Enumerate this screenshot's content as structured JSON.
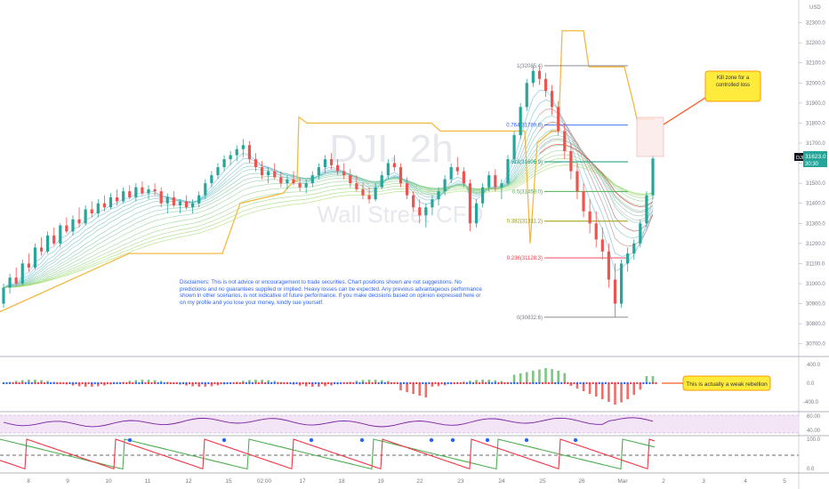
{
  "chart_data": {
    "type": "candlestick",
    "watermark": {
      "symbol": "DJI, 2h",
      "subtitle": "Wall Street CFD"
    },
    "currency": "USD",
    "price_axis": {
      "ticks": [
        30700,
        30800,
        30900,
        31000,
        31100,
        31200,
        31300,
        31400,
        31500,
        31600,
        31700,
        31800,
        31900,
        32000,
        32100,
        32200,
        32300
      ],
      "ylim": [
        30650,
        32360
      ]
    },
    "last_price": {
      "symbol": "DJI",
      "value": "31623.0",
      "countdown": "30:30"
    },
    "x_axis": {
      "labels": [
        "8",
        "9",
        "10",
        "11",
        "12",
        "15",
        "02:00",
        "17",
        "18",
        "19",
        "22",
        "23",
        "24",
        "25",
        "26",
        "Mar",
        "2",
        "3",
        "4",
        "5"
      ]
    },
    "candles": [
      [
        30900,
        31000,
        30880,
        30980
      ],
      [
        30980,
        31050,
        30950,
        31030
      ],
      [
        31030,
        31080,
        30990,
        31000
      ],
      [
        31000,
        31120,
        30990,
        31100
      ],
      [
        31100,
        31150,
        31060,
        31080
      ],
      [
        31080,
        31200,
        31070,
        31180
      ],
      [
        31180,
        31230,
        31140,
        31160
      ],
      [
        31160,
        31260,
        31150,
        31240
      ],
      [
        31240,
        31280,
        31190,
        31200
      ],
      [
        31200,
        31300,
        31180,
        31290
      ],
      [
        31290,
        31330,
        31250,
        31260
      ],
      [
        31260,
        31340,
        31240,
        31320
      ],
      [
        31320,
        31380,
        31280,
        31300
      ],
      [
        31300,
        31390,
        31290,
        31370
      ],
      [
        31370,
        31410,
        31330,
        31350
      ],
      [
        31350,
        31420,
        31330,
        31400
      ],
      [
        31400,
        31440,
        31360,
        31380
      ],
      [
        31380,
        31450,
        31370,
        31430
      ],
      [
        31430,
        31470,
        31390,
        31410
      ],
      [
        31410,
        31480,
        31400,
        31460
      ],
      [
        31460,
        31490,
        31420,
        31430
      ],
      [
        31430,
        31500,
        31410,
        31480
      ],
      [
        31480,
        31510,
        31440,
        31450
      ],
      [
        31450,
        31490,
        31420,
        31470
      ],
      [
        31470,
        31500,
        31440,
        31460
      ],
      [
        31460,
        31480,
        31380,
        31400
      ],
      [
        31400,
        31450,
        31350,
        31430
      ],
      [
        31430,
        31460,
        31380,
        31390
      ],
      [
        31390,
        31420,
        31350,
        31410
      ],
      [
        31410,
        31440,
        31370,
        31380
      ],
      [
        31380,
        31420,
        31350,
        31400
      ],
      [
        31400,
        31460,
        31380,
        31440
      ],
      [
        31440,
        31520,
        31420,
        31500
      ],
      [
        31500,
        31560,
        31480,
        31540
      ],
      [
        31540,
        31600,
        31520,
        31580
      ],
      [
        31580,
        31640,
        31560,
        31620
      ],
      [
        31620,
        31660,
        31590,
        31640
      ],
      [
        31640,
        31690,
        31610,
        31670
      ],
      [
        31670,
        31720,
        31630,
        31690
      ],
      [
        31690,
        31710,
        31600,
        31620
      ],
      [
        31620,
        31650,
        31560,
        31580
      ],
      [
        31580,
        31610,
        31520,
        31540
      ],
      [
        31540,
        31580,
        31500,
        31560
      ],
      [
        31560,
        31600,
        31520,
        31530
      ],
      [
        31530,
        31560,
        31480,
        31500
      ],
      [
        31500,
        31540,
        31470,
        31520
      ],
      [
        31520,
        31560,
        31490,
        31500
      ],
      [
        31500,
        31530,
        31460,
        31480
      ],
      [
        31480,
        31520,
        31450,
        31500
      ],
      [
        31500,
        31560,
        31480,
        31540
      ],
      [
        31540,
        31600,
        31520,
        31580
      ],
      [
        31580,
        31640,
        31550,
        31620
      ],
      [
        31620,
        31650,
        31570,
        31590
      ],
      [
        31590,
        31620,
        31540,
        31560
      ],
      [
        31560,
        31600,
        31520,
        31540
      ],
      [
        31540,
        31570,
        31480,
        31500
      ],
      [
        31500,
        31540,
        31460,
        31470
      ],
      [
        31470,
        31500,
        31420,
        31440
      ],
      [
        31440,
        31480,
        31400,
        31420
      ],
      [
        31420,
        31500,
        31410,
        31480
      ],
      [
        31480,
        31560,
        31470,
        31540
      ],
      [
        31540,
        31620,
        31520,
        31600
      ],
      [
        31600,
        31640,
        31560,
        31580
      ],
      [
        31580,
        31600,
        31480,
        31500
      ],
      [
        31500,
        31530,
        31420,
        31440
      ],
      [
        31440,
        31460,
        31360,
        31380
      ],
      [
        31380,
        31420,
        31300,
        31340
      ],
      [
        31340,
        31400,
        31280,
        31380
      ],
      [
        31380,
        31440,
        31340,
        31420
      ],
      [
        31420,
        31480,
        31390,
        31460
      ],
      [
        31460,
        31540,
        31440,
        31520
      ],
      [
        31520,
        31600,
        31500,
        31580
      ],
      [
        31580,
        31630,
        31540,
        31560
      ],
      [
        31560,
        31580,
        31480,
        31500
      ],
      [
        31500,
        31520,
        31260,
        31300
      ],
      [
        31300,
        31420,
        31280,
        31400
      ],
      [
        31400,
        31500,
        31380,
        31480
      ],
      [
        31480,
        31560,
        31460,
        31540
      ],
      [
        31540,
        31570,
        31460,
        31480
      ],
      [
        31480,
        31520,
        31420,
        31500
      ],
      [
        31500,
        31640,
        31490,
        31620
      ],
      [
        31620,
        31760,
        31600,
        31740
      ],
      [
        31740,
        31900,
        31720,
        31880
      ],
      [
        31880,
        32020,
        31860,
        32000
      ],
      [
        32000,
        32085,
        31980,
        32060
      ],
      [
        32060,
        32080,
        31990,
        32020
      ],
      [
        32020,
        32050,
        31930,
        31960
      ],
      [
        31960,
        31990,
        31840,
        31880
      ],
      [
        31880,
        31910,
        31740,
        31760
      ],
      [
        31760,
        31800,
        31620,
        31660
      ],
      [
        31660,
        31700,
        31520,
        31560
      ],
      [
        31560,
        31600,
        31420,
        31460
      ],
      [
        31460,
        31500,
        31330,
        31360
      ],
      [
        31360,
        31420,
        31250,
        31300
      ],
      [
        31300,
        31360,
        31180,
        31220
      ],
      [
        31220,
        31280,
        31120,
        31160
      ],
      [
        31160,
        31200,
        30980,
        31020
      ],
      [
        31020,
        31100,
        30832,
        30900
      ],
      [
        30900,
        31120,
        30880,
        31100
      ],
      [
        31100,
        31180,
        31060,
        31150
      ],
      [
        31150,
        31220,
        31120,
        31200
      ],
      [
        31200,
        31320,
        31180,
        31300
      ],
      [
        31300,
        31460,
        31280,
        31440
      ],
      [
        31440,
        31640,
        31420,
        31623
      ]
    ],
    "fibonacci": [
      {
        "label": "1(32085.4)",
        "value": 32085.4,
        "color": "#787b86"
      },
      {
        "label": "0.764(31789.8)",
        "value": 31789.8,
        "color": "#2962ff"
      },
      {
        "label": "0.618(31606.9)",
        "value": 31606.9,
        "color": "#089981"
      },
      {
        "label": "0.5(31459.0)",
        "value": 31459.0,
        "color": "#4caf50"
      },
      {
        "label": "0.382(31311.2)",
        "value": 31311.2,
        "color": "#9c9a00"
      },
      {
        "label": "0.236(31128.3)",
        "value": 31128.3,
        "color": "#f23645"
      },
      {
        "label": "0(30832.6)",
        "value": 30832.6,
        "color": "#787b86"
      }
    ],
    "annotations": [
      {
        "text": "Kill zone for a controlled loss"
      },
      {
        "text": "This is actually a weak rebellion"
      }
    ],
    "disclaimer": "Disclaimers: This is not advice or encouragement to trade securities. Chart positions shown are not suggestions. No predictions and no guarantees supplied or implied. Heavy losses can be expected. Any previous advantageous performance shown in other scenarios, is not indicative of future performance.  If you make decisions based on opinion expressed here or on my profile and you lose your money, kindly sue yourself.",
    "indicator1": {
      "ticks": [
        "400.0",
        "0.0",
        "-400.0"
      ]
    },
    "indicator2": {
      "ticks": [
        "60.00",
        "40.00"
      ]
    },
    "indicator3": {
      "ticks": [
        "100.0",
        "0.0"
      ]
    }
  },
  "colors": {
    "up": "#26a69a",
    "down": "#ef5350",
    "up_bright": "#66bb6a",
    "orange": "#f5b942"
  }
}
